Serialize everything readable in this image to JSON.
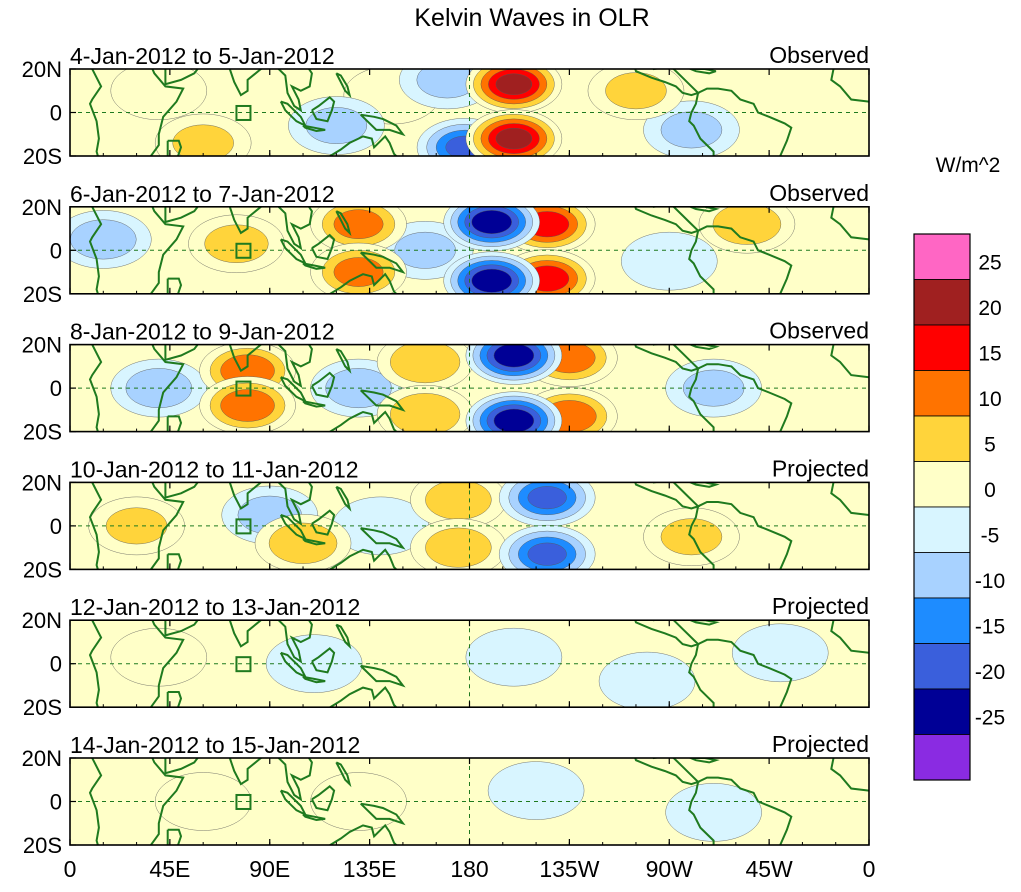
{
  "chart_data": {
    "type": "heatmap",
    "title": "Kelvin Waves in OLR",
    "units_label": "W/m^2",
    "x_ticks": [
      "0",
      "45E",
      "90E",
      "135E",
      "180",
      "135W",
      "90W",
      "45W",
      "0"
    ],
    "y_ticks": [
      "20N",
      "0",
      "20S"
    ],
    "colorbar": {
      "levels": [
        "25",
        "20",
        "15",
        "10",
        "5",
        "0",
        "-5",
        "-10",
        "-15",
        "-20",
        "-25"
      ],
      "colors": [
        "#ff66c4",
        "#a02020",
        "#ff0000",
        "#ff7300",
        "#ffd43b",
        "#ffffc8",
        "#d8f5ff",
        "#a8d2ff",
        "#1e8cff",
        "#3a5fdc",
        "#000096",
        "#8a2be2"
      ]
    },
    "panels": [
      {
        "date_range": "4-Jan-2012 to 5-Jan-2012",
        "status": "Observed",
        "anomalies": [
          {
            "lon": 200,
            "lat": 13,
            "value": 22
          },
          {
            "lon": 200,
            "lat": -12,
            "value": 22
          },
          {
            "lon": 178,
            "lat": -16,
            "value": -16
          },
          {
            "lon": 170,
            "lat": 15,
            "value": -6
          },
          {
            "lon": 280,
            "lat": -8,
            "value": -6
          },
          {
            "lon": 255,
            "lat": 10,
            "value": 6
          },
          {
            "lon": 60,
            "lat": -14,
            "value": 6
          },
          {
            "lon": 120,
            "lat": -6,
            "value": -6
          },
          {
            "lon": 145,
            "lat": 8,
            "value": 4
          },
          {
            "lon": 40,
            "lat": 10,
            "value": 4
          }
        ]
      },
      {
        "date_range": "6-Jan-2012 to 7-Jan-2012",
        "status": "Observed",
        "anomalies": [
          {
            "lon": 190,
            "lat": 13,
            "value": -24
          },
          {
            "lon": 215,
            "lat": 12,
            "value": 18
          },
          {
            "lon": 190,
            "lat": -14,
            "value": -24
          },
          {
            "lon": 215,
            "lat": -13,
            "value": 18
          },
          {
            "lon": 130,
            "lat": 12,
            "value": 12
          },
          {
            "lon": 130,
            "lat": -10,
            "value": 12
          },
          {
            "lon": 75,
            "lat": 3,
            "value": 7
          },
          {
            "lon": 15,
            "lat": 5,
            "value": -8
          },
          {
            "lon": 305,
            "lat": 12,
            "value": 9
          },
          {
            "lon": 160,
            "lat": 0,
            "value": -6
          },
          {
            "lon": 270,
            "lat": -5,
            "value": -5
          }
        ]
      },
      {
        "date_range": "8-Jan-2012 to 9-Jan-2012",
        "status": "Observed",
        "anomalies": [
          {
            "lon": 200,
            "lat": 15,
            "value": -24
          },
          {
            "lon": 200,
            "lat": -15,
            "value": -24
          },
          {
            "lon": 225,
            "lat": 14,
            "value": 13
          },
          {
            "lon": 225,
            "lat": -13,
            "value": 14
          },
          {
            "lon": 80,
            "lat": 8,
            "value": 14
          },
          {
            "lon": 80,
            "lat": -8,
            "value": 14
          },
          {
            "lon": 40,
            "lat": 0,
            "value": -8
          },
          {
            "lon": 160,
            "lat": 12,
            "value": 10
          },
          {
            "lon": 160,
            "lat": -12,
            "value": 10
          },
          {
            "lon": 130,
            "lat": 0,
            "value": -8
          },
          {
            "lon": 290,
            "lat": 0,
            "value": -6
          }
        ]
      },
      {
        "date_range": "10-Jan-2012 to 11-Jan-2012",
        "status": "Projected",
        "anomalies": [
          {
            "lon": 215,
            "lat": 13,
            "value": -16
          },
          {
            "lon": 215,
            "lat": -13,
            "value": -16
          },
          {
            "lon": 175,
            "lat": 12,
            "value": 8
          },
          {
            "lon": 175,
            "lat": -10,
            "value": 8
          },
          {
            "lon": 105,
            "lat": -8,
            "value": 9
          },
          {
            "lon": 90,
            "lat": 5,
            "value": -7
          },
          {
            "lon": 30,
            "lat": 0,
            "value": 6
          },
          {
            "lon": 280,
            "lat": -5,
            "value": 6
          },
          {
            "lon": 140,
            "lat": 0,
            "value": -5
          }
        ]
      },
      {
        "date_range": "12-Jan-2012 to 13-Jan-2012",
        "status": "Projected",
        "anomalies": [
          {
            "lon": 40,
            "lat": 3,
            "value": 3
          },
          {
            "lon": 110,
            "lat": 0,
            "value": -2
          },
          {
            "lon": 200,
            "lat": 3,
            "value": -3
          },
          {
            "lon": 260,
            "lat": -8,
            "value": -2
          },
          {
            "lon": 320,
            "lat": 5,
            "value": -2
          }
        ]
      },
      {
        "date_range": "14-Jan-2012 to 15-Jan-2012",
        "status": "Projected",
        "anomalies": [
          {
            "lon": 60,
            "lat": 0,
            "value": 2
          },
          {
            "lon": 210,
            "lat": 5,
            "value": -3
          },
          {
            "lon": 290,
            "lat": -5,
            "value": -3
          },
          {
            "lon": 130,
            "lat": 0,
            "value": 1
          }
        ]
      }
    ]
  }
}
